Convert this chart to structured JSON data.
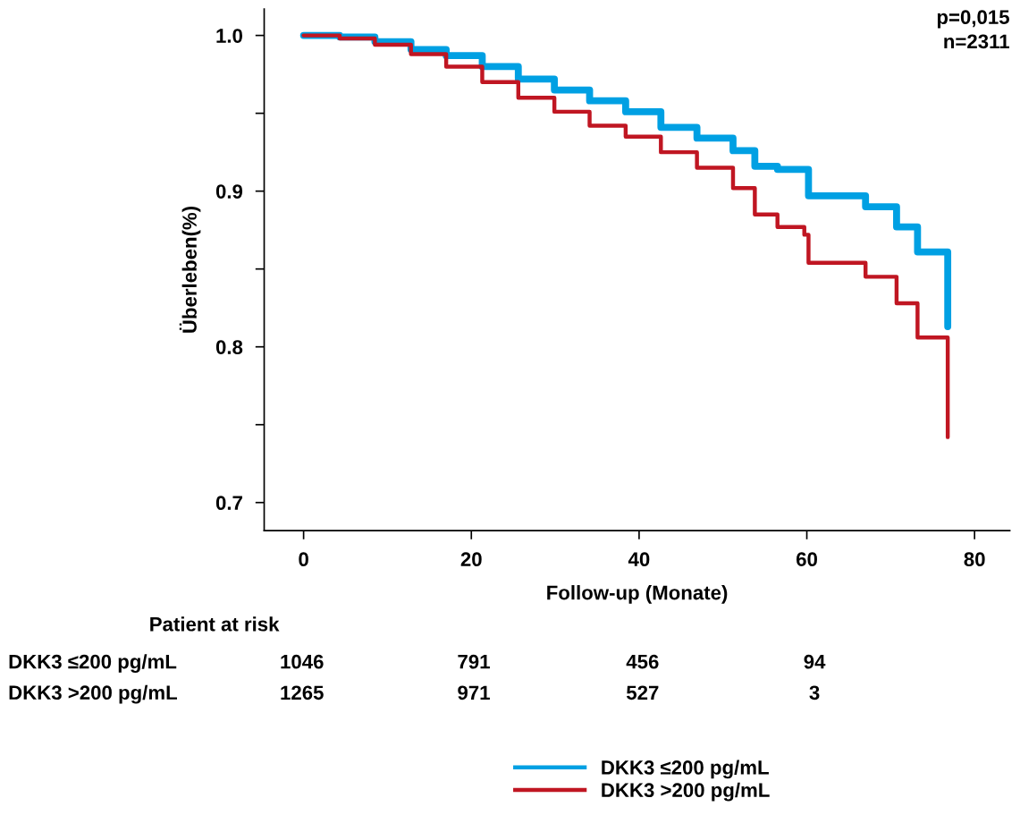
{
  "chart_data": {
    "type": "step",
    "xlabel": "Follow-up (Monate)",
    "ylabel": "Überleben(%)",
    "xlim": [
      -4.7,
      84.2
    ],
    "ylim": [
      0.682,
      1.017
    ],
    "xticks": [
      0,
      20,
      40,
      60,
      80
    ],
    "yticks": [
      0.7,
      {
        "value": 0.75,
        "label": null
      },
      0.8,
      {
        "value": 0.85,
        "label": null
      },
      0.9,
      {
        "value": 0.95,
        "label": null
      },
      {
        "value": 1.0,
        "label": "1.0"
      }
    ],
    "grid": false,
    "legend": "bottom",
    "series": [
      {
        "name": "DKK3 ≤200 pg/mL",
        "color": "#00a0e3",
        "x": [
          0,
          4.3,
          8.5,
          12.8,
          17,
          21.3,
          25.6,
          29.9,
          34.1,
          38.4,
          42.6,
          46.9,
          51.2,
          53.8,
          56.5,
          60.2,
          67,
          70.7,
          73.2,
          76.8,
          76.8
        ],
        "values": [
          1.0,
          0.999,
          0.996,
          0.991,
          0.987,
          0.98,
          0.972,
          0.965,
          0.958,
          0.951,
          0.941,
          0.934,
          0.926,
          0.916,
          0.914,
          0.897,
          0.89,
          0.877,
          0.861,
          0.861,
          0.813
        ]
      },
      {
        "name": "DKK3 >200 pg/mL",
        "color": "#c01622",
        "x": [
          0,
          4.3,
          8.5,
          12.8,
          17,
          21.3,
          25.6,
          29.9,
          34.1,
          38.4,
          42.6,
          46.9,
          51.2,
          53.8,
          56.5,
          59.7,
          60.2,
          67,
          70.7,
          73.2,
          76.8,
          76.8
        ],
        "values": [
          1.0,
          0.998,
          0.994,
          0.988,
          0.98,
          0.97,
          0.96,
          0.951,
          0.942,
          0.935,
          0.925,
          0.915,
          0.902,
          0.885,
          0.877,
          0.872,
          0.854,
          0.845,
          0.828,
          0.806,
          0.806,
          0.742
        ]
      }
    ],
    "annotations": [
      "p=0,015",
      "n=2311",
      "Patient at risk",
      "DKK3 ≤200 pg/mL",
      "1046",
      "791",
      "456",
      "94",
      "DKK3 >200 pg/mL",
      "1265",
      "971",
      "527",
      "3"
    ]
  }
}
